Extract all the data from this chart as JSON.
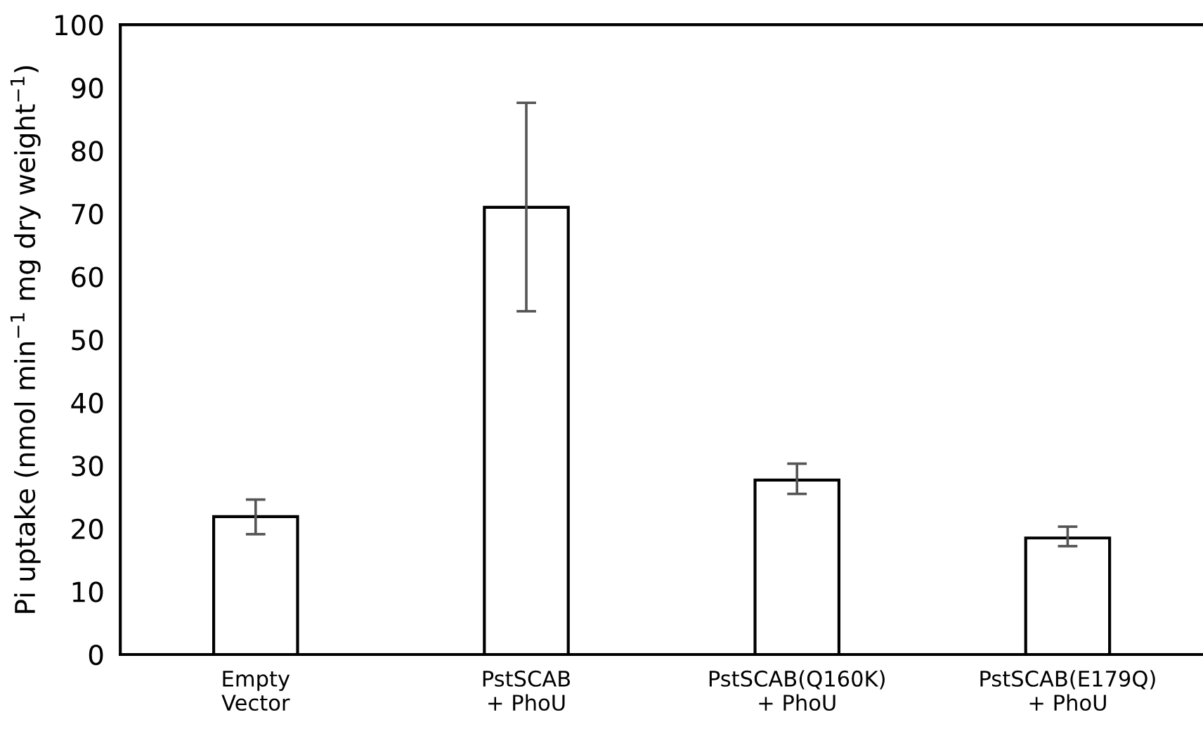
{
  "chart_data": {
    "type": "bar",
    "ylabel": "Pi uptake (nmol min$^{−1}$ mg dry weight$^{−1}$)",
    "categories": [
      "Empty\nVector",
      "PstSCAB\n+ PhoU",
      "PstSCAB(Q160K)\n+ PhoU",
      "PstSCAB(E179Q)\n+ PhoU"
    ],
    "values": [
      21.9,
      71.0,
      27.7,
      18.5
    ],
    "errors": [
      [
        19.1,
        24.6
      ],
      [
        54.5,
        87.6
      ],
      [
        25.5,
        30.3
      ],
      [
        17.2,
        20.3
      ]
    ],
    "color": "#ffffff",
    "ylim": [
      0,
      100
    ],
    "yticks": [
      0,
      10,
      20,
      30,
      40,
      50,
      60,
      70,
      80,
      90,
      100
    ],
    "grid": false
  }
}
